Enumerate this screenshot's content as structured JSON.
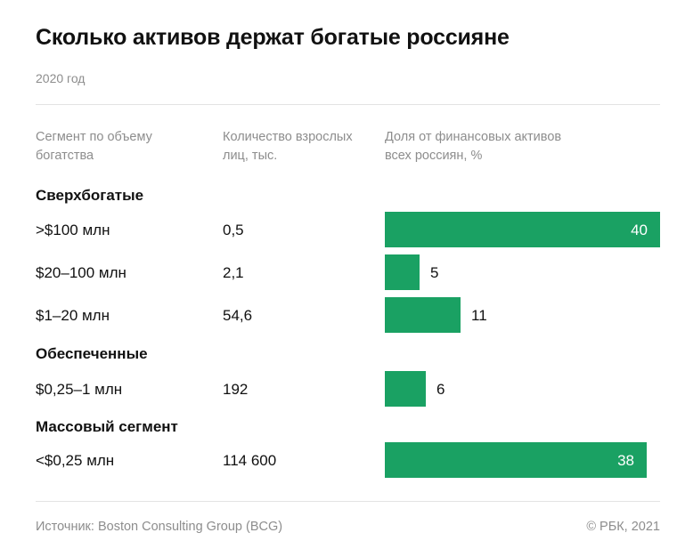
{
  "title": "Сколько активов держат богатые россияне",
  "subtitle": "2020 год",
  "headers": {
    "segment": "Сегмент по объему богатства",
    "count": "Количество взрослых лиц, тыс.",
    "share": "Доля от финансовых активов всех россиян, %"
  },
  "groups": [
    {
      "name": "Сверхбогатые"
    },
    {
      "name": "Обеспеченные"
    },
    {
      "name": "Массовый сегмент"
    }
  ],
  "chart_data": {
    "type": "bar",
    "orientation": "horizontal",
    "title": "Сколько активов держат богатые россияне",
    "subtitle": "2020 год",
    "categories": [
      ">$100 млн",
      "$20–100 млн",
      "$1–20 млн",
      "$0,25–1 млн",
      "<$0,25 млн"
    ],
    "count_labels": [
      "0,5",
      "2,1",
      "54,6",
      "192",
      "114 600"
    ],
    "values": [
      40,
      5,
      11,
      6,
      38
    ],
    "xlim": [
      0,
      40
    ],
    "bar_color": "#1aa163",
    "grid": false,
    "legend": "none"
  },
  "footer": {
    "source": "Источник: Boston Consulting Group (BCG)",
    "copyright": "© РБК, 2021"
  }
}
